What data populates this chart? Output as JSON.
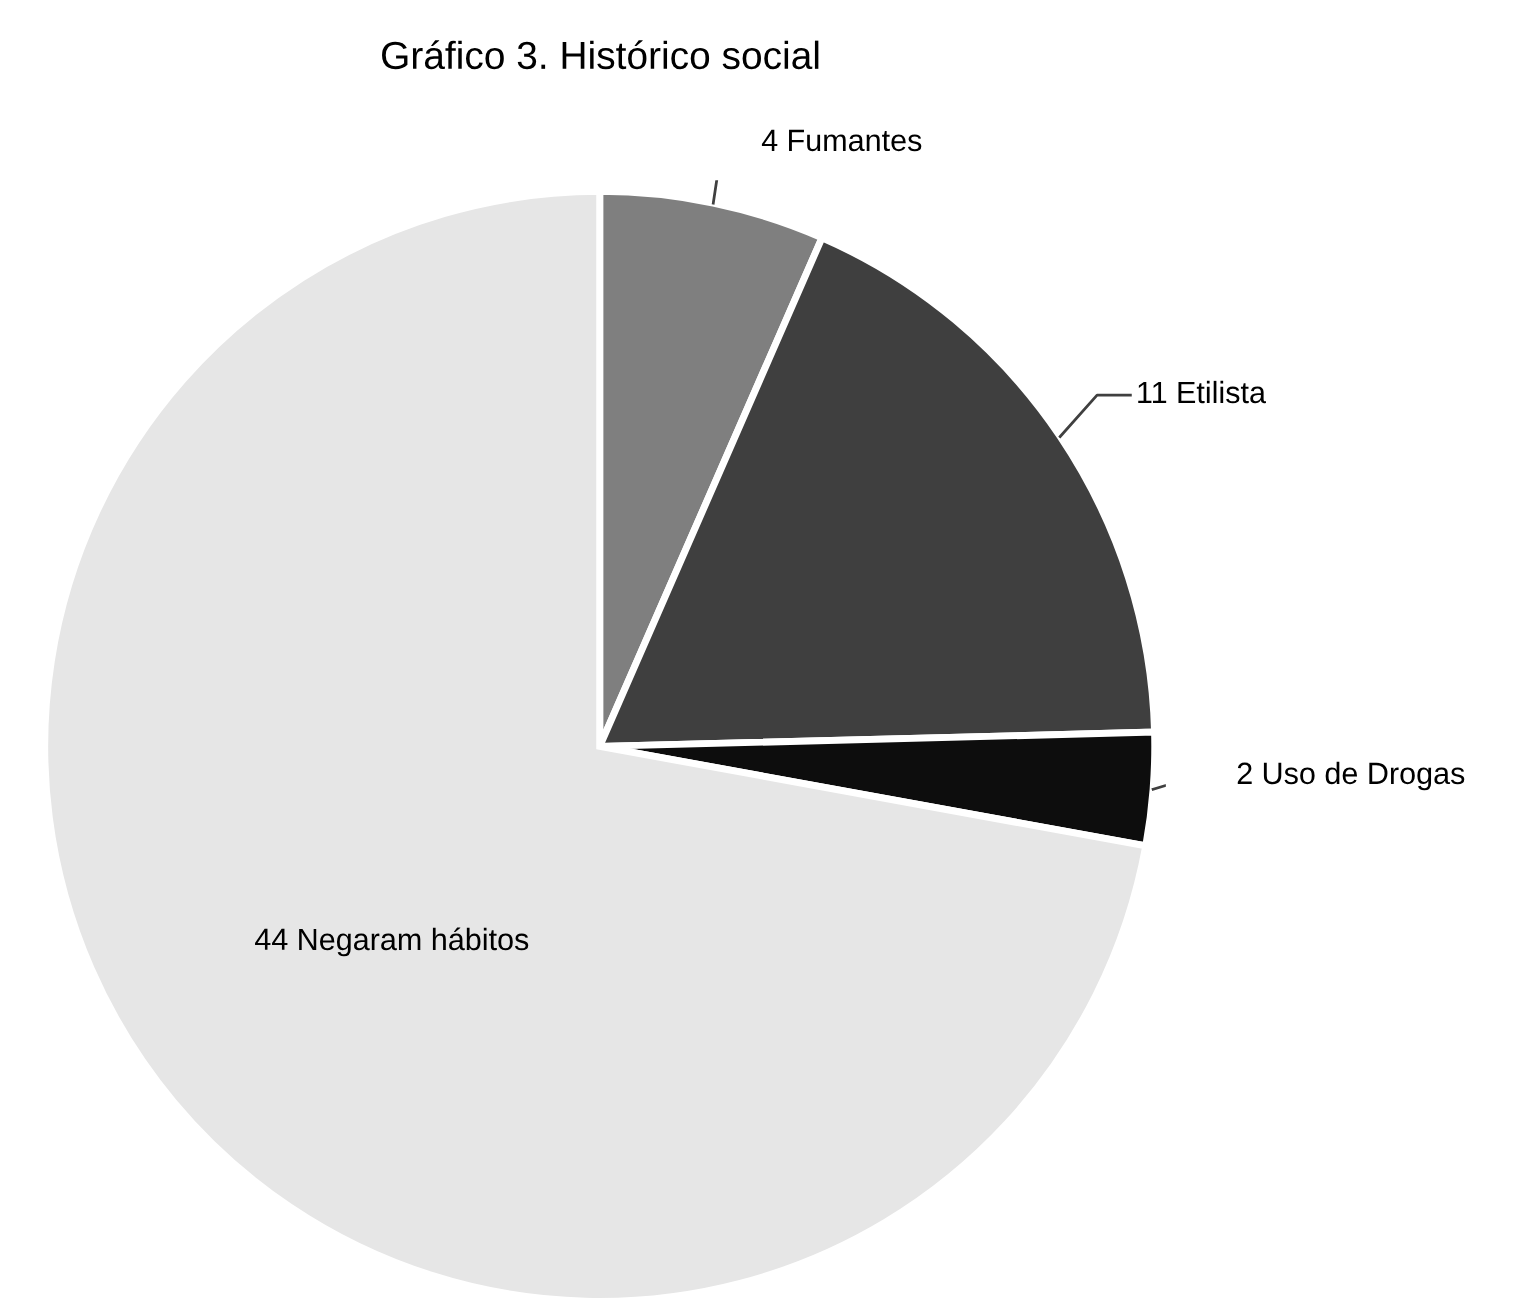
{
  "chart_data": {
    "type": "pie",
    "title": "Gráfico 3. Histórico social",
    "categories": [
      "Fumantes",
      "Etilista",
      "Uso de Drogas",
      "Negaram hábitos"
    ],
    "values": [
      4,
      11,
      2,
      44
    ],
    "colors": [
      "#7f7f7f",
      "#3f3f3f",
      "#0d0d0d",
      "#e6e6e6"
    ],
    "data_labels": true,
    "legend": false
  }
}
